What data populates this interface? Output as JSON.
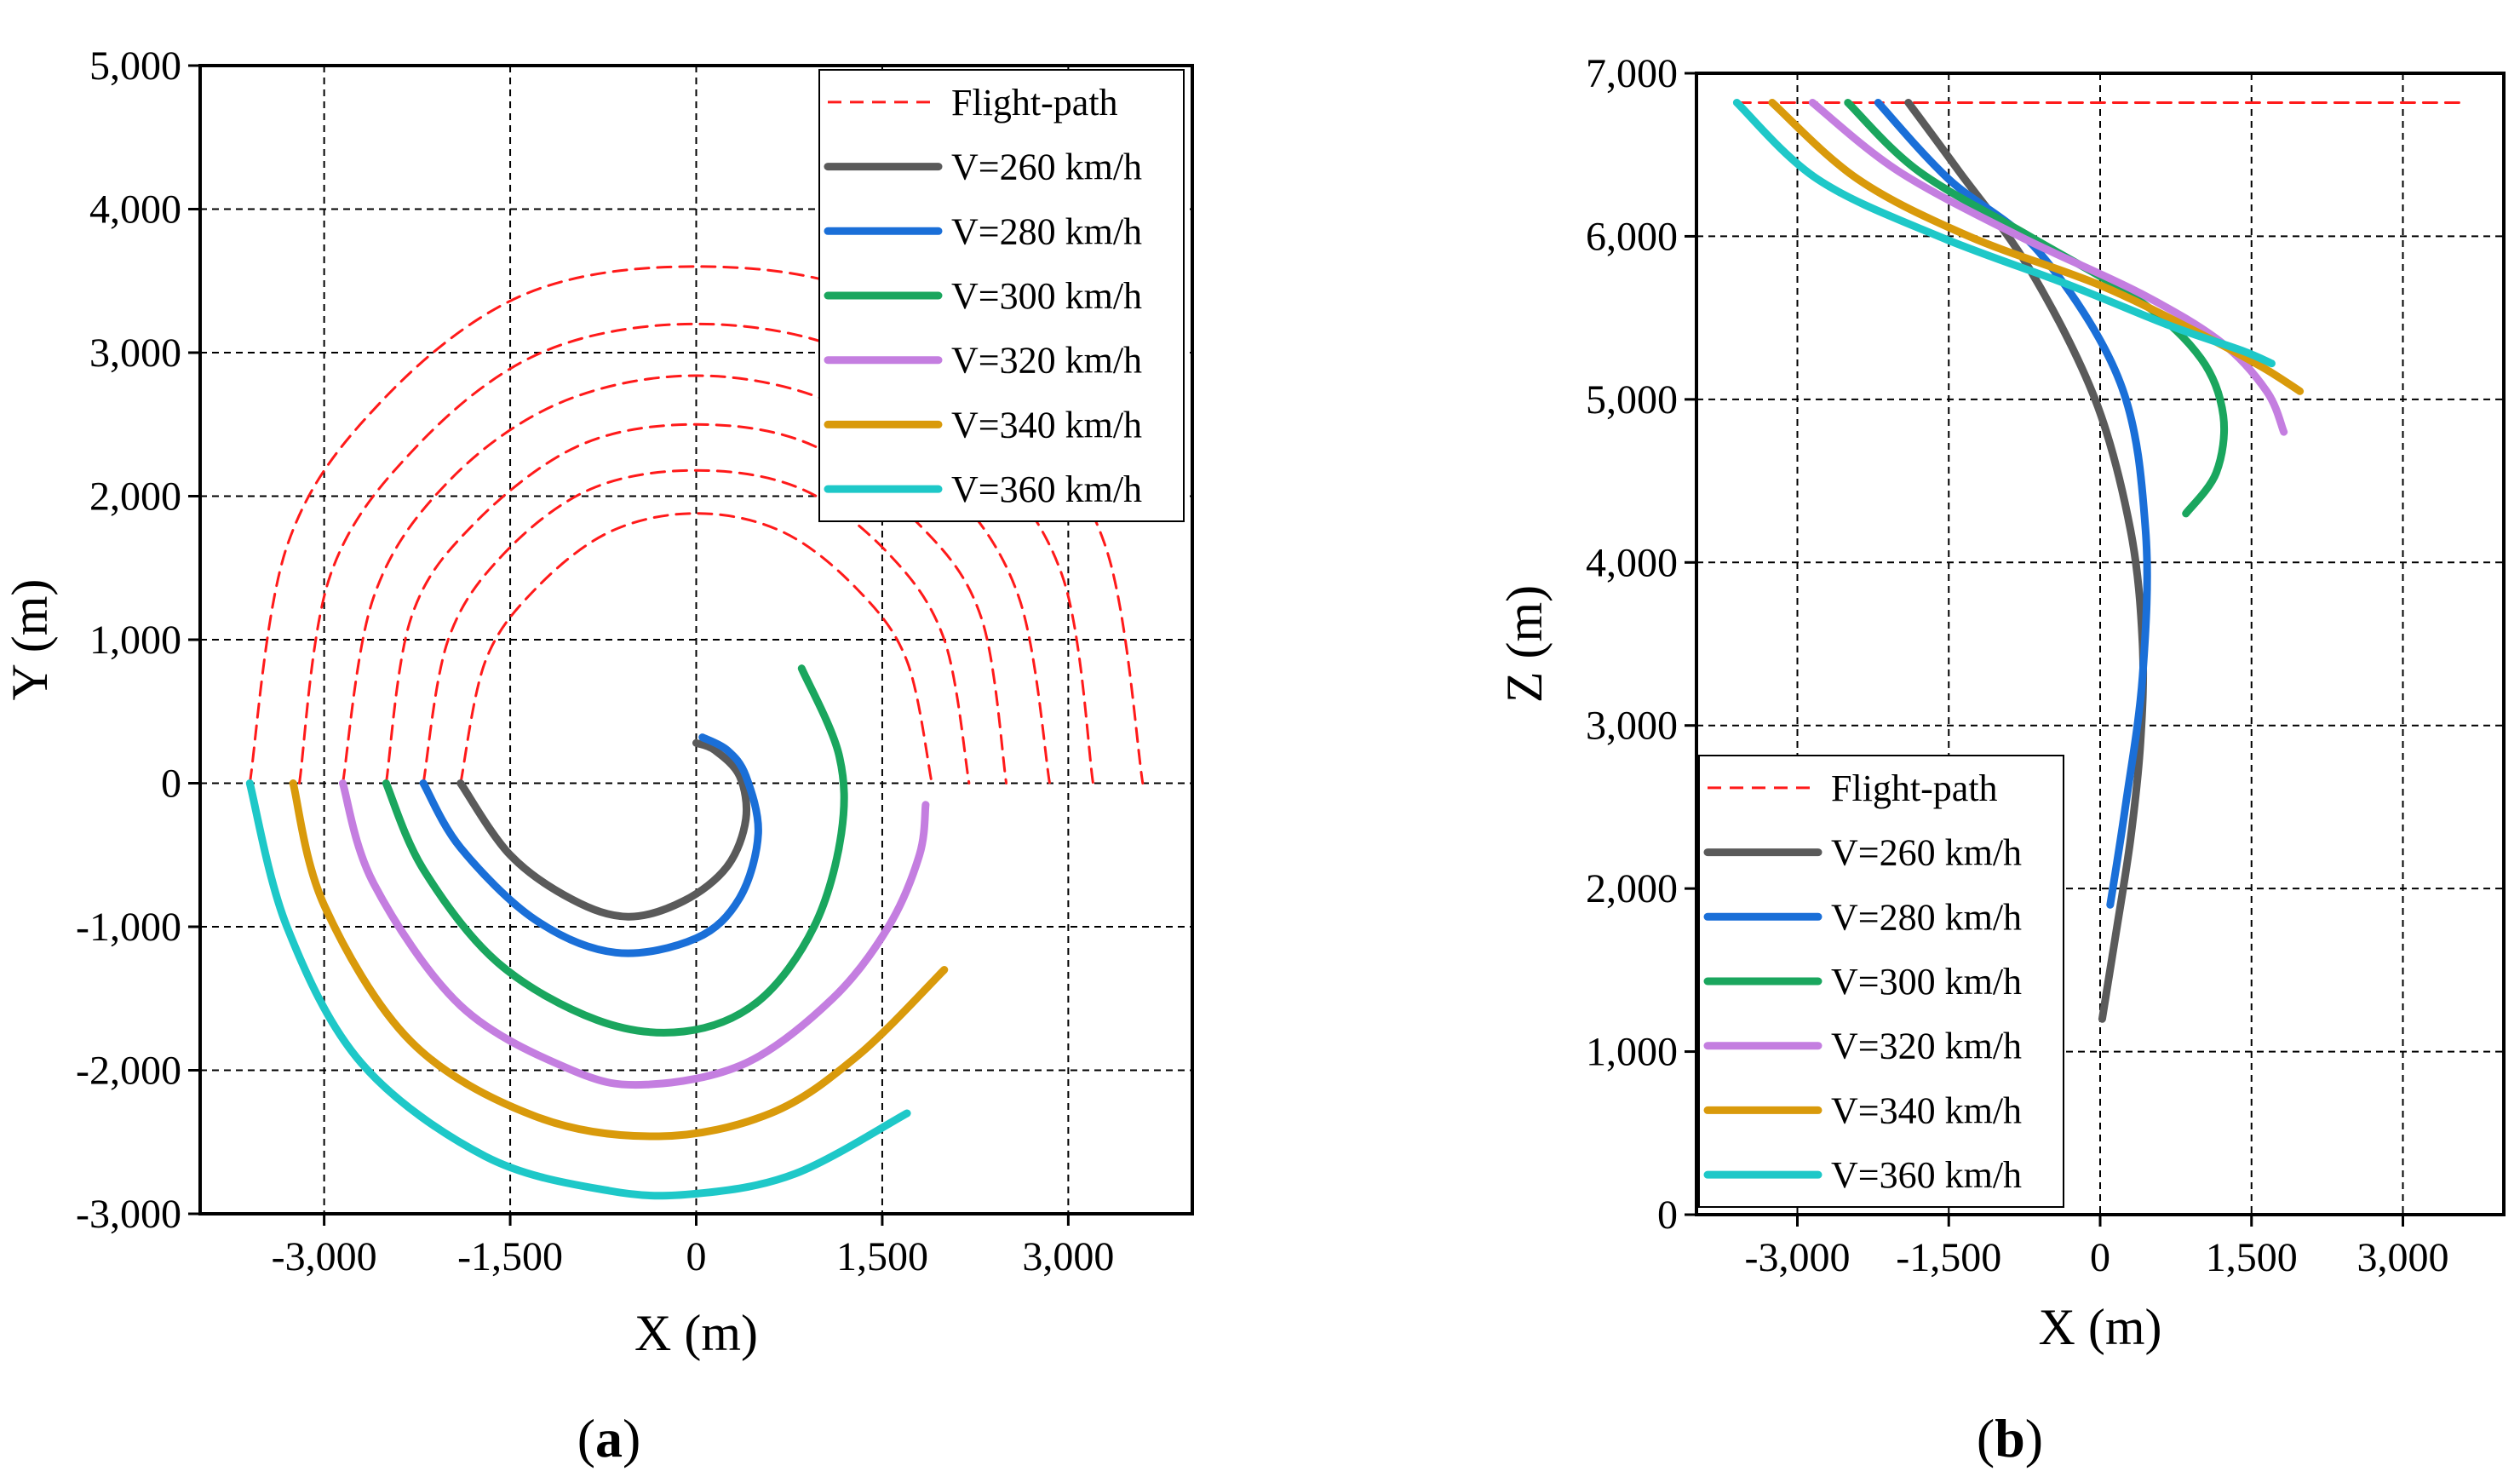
{
  "chart_data": [
    {
      "type": "line",
      "panel": "a",
      "panel_label": "a",
      "xlabel": "X (m)",
      "ylabel": "Y (m)",
      "xlim": [
        -4000,
        4000
      ],
      "ylim": [
        -3000,
        5000
      ],
      "xticks": [
        -3000,
        -1500,
        0,
        1500,
        3000
      ],
      "xtick_labels": [
        "-3,000",
        "-1,500",
        "0",
        "1,500",
        "3,000"
      ],
      "yticks": [
        -3000,
        -2000,
        -1000,
        0,
        1000,
        2000,
        3000,
        4000,
        5000
      ],
      "ytick_labels": [
        "-3,000",
        "-2,000",
        "-1,000",
        "0",
        "1,000",
        "2,000",
        "3,000",
        "4,000",
        "5,000"
      ],
      "grid": true,
      "legend_position": "top-right",
      "series": [
        {
          "name": "Flight-path",
          "color": "#ff1a1a",
          "dashed": true,
          "arcs": [
            {
              "x": [
                -1900,
                -1700,
                -1300,
                -700,
                0,
                700,
                1300,
                1700,
                1900
              ],
              "y": [
                0,
                850,
                1350,
                1750,
                1880,
                1750,
                1350,
                850,
                0
              ]
            },
            {
              "x": [
                -2200,
                -2000,
                -1550,
                -850,
                0,
                850,
                1550,
                2000,
                2200
              ],
              "y": [
                0,
                1000,
                1600,
                2050,
                2180,
                2050,
                1600,
                1000,
                0
              ]
            },
            {
              "x": [
                -2500,
                -2300,
                -1800,
                -950,
                0,
                950,
                1800,
                2300,
                2500
              ],
              "y": [
                0,
                1150,
                1800,
                2350,
                2500,
                2350,
                1800,
                1150,
                0
              ]
            },
            {
              "x": [
                -2850,
                -2600,
                -2000,
                -1100,
                0,
                1100,
                2000,
                2600,
                2850
              ],
              "y": [
                0,
                1300,
                2100,
                2650,
                2840,
                2650,
                2100,
                1300,
                0
              ]
            },
            {
              "x": [
                -3200,
                -2950,
                -2250,
                -1250,
                0,
                1250,
                2250,
                2950,
                3200
              ],
              "y": [
                0,
                1450,
                2350,
                3000,
                3200,
                3000,
                2350,
                1450,
                0
              ]
            },
            {
              "x": [
                -3600,
                -3300,
                -2550,
                -1400,
                0,
                1400,
                2550,
                3300,
                3600
              ],
              "y": [
                0,
                1650,
                2650,
                3400,
                3600,
                3400,
                2650,
                1650,
                0
              ]
            }
          ]
        },
        {
          "name": "V=260 km/h",
          "color": "#5a5a5a",
          "x": [
            -1900,
            -1500,
            -1000,
            -550,
            -100,
            250,
            400,
            350,
            150,
            0
          ],
          "y": [
            0,
            -500,
            -810,
            -930,
            -820,
            -580,
            -250,
            50,
            230,
            280
          ]
        },
        {
          "name": "V=280 km/h",
          "color": "#1a6fd8",
          "x": [
            -2200,
            -1900,
            -1300,
            -650,
            0,
            350,
            500,
            400,
            250,
            50
          ],
          "y": [
            0,
            -450,
            -950,
            -1180,
            -1080,
            -800,
            -350,
            50,
            230,
            320
          ]
        },
        {
          "name": "V=300 km/h",
          "color": "#1aa65e",
          "x": [
            -2500,
            -2200,
            -1600,
            -800,
            -100,
            500,
            950,
            1170,
            1150,
            850
          ],
          "y": [
            0,
            -600,
            -1250,
            -1650,
            -1730,
            -1520,
            -1000,
            -350,
            200,
            800
          ]
        },
        {
          "name": "V=320 km/h",
          "color": "#c47ee0",
          "x": [
            -2850,
            -2600,
            -1900,
            -1000,
            -400,
            400,
            1100,
            1550,
            1800,
            1850
          ],
          "y": [
            0,
            -700,
            -1550,
            -2000,
            -2100,
            -1950,
            -1500,
            -1000,
            -500,
            -150
          ]
        },
        {
          "name": "V=340 km/h",
          "color": "#d99a0b",
          "x": [
            -3250,
            -3000,
            -2300,
            -1300,
            -300,
            600,
            1300,
            2000
          ],
          "y": [
            0,
            -850,
            -1800,
            -2320,
            -2460,
            -2300,
            -1900,
            -1300
          ]
        },
        {
          "name": "V=360 km/h",
          "color": "#1ec8c8",
          "x": [
            -3600,
            -3300,
            -2700,
            -1700,
            -700,
            0,
            800,
            1700
          ],
          "y": [
            0,
            -1000,
            -1950,
            -2600,
            -2840,
            -2860,
            -2720,
            -2300
          ]
        }
      ]
    },
    {
      "type": "line",
      "panel": "b",
      "panel_label": "b",
      "xlabel": "X (m)",
      "ylabel": "Z (m)",
      "xlim": [
        -4000,
        4000
      ],
      "ylim": [
        0,
        7000
      ],
      "xticks": [
        -3000,
        -1500,
        0,
        1500,
        3000
      ],
      "xtick_labels": [
        "-3,000",
        "-1,500",
        "0",
        "1,500",
        "3,000"
      ],
      "yticks": [
        0,
        1000,
        2000,
        3000,
        4000,
        5000,
        6000,
        7000
      ],
      "ytick_labels": [
        "0",
        "1,000",
        "2,000",
        "3,000",
        "4,000",
        "5,000",
        "6,000",
        "7,000"
      ],
      "grid": true,
      "legend_position": "bottom-left",
      "series": [
        {
          "name": "Flight-path",
          "color": "#ff1a1a",
          "dashed": true,
          "x": [
            -3600,
            3600
          ],
          "y": [
            6820,
            6820
          ]
        },
        {
          "name": "V=260 km/h",
          "color": "#5a5a5a",
          "x": [
            -1900,
            -1400,
            -700,
            -50,
            300,
            420,
            400,
            300,
            150,
            20
          ],
          "y": [
            6820,
            6400,
            5800,
            5000,
            4200,
            3500,
            2900,
            2300,
            1700,
            1200
          ]
        },
        {
          "name": "V=280 km/h",
          "color": "#1a6fd8",
          "x": [
            -2200,
            -1500,
            -600,
            200,
            450,
            420,
            250,
            100
          ],
          "y": [
            6820,
            6350,
            5900,
            5100,
            4200,
            3300,
            2500,
            1900
          ]
        },
        {
          "name": "V=300 km/h",
          "color": "#1aa65e",
          "x": [
            -2500,
            -1800,
            -700,
            400,
            1000,
            1220,
            1150,
            850
          ],
          "y": [
            6820,
            6400,
            6000,
            5600,
            5250,
            4900,
            4550,
            4300
          ]
        },
        {
          "name": "V=320 km/h",
          "color": "#c47ee0",
          "x": [
            -2850,
            -2000,
            -800,
            400,
            1200,
            1650,
            1820
          ],
          "y": [
            6820,
            6400,
            6000,
            5650,
            5350,
            5050,
            4800
          ]
        },
        {
          "name": "V=340 km/h",
          "color": "#d99a0b",
          "x": [
            -3250,
            -2400,
            -1300,
            0,
            1000,
            1600,
            1980
          ],
          "y": [
            6820,
            6350,
            6000,
            5700,
            5400,
            5200,
            5050
          ]
        },
        {
          "name": "V=360 km/h",
          "color": "#1ec8c8",
          "x": [
            -3600,
            -2800,
            -1600,
            -300,
            700,
            1400,
            1700
          ],
          "y": [
            6820,
            6350,
            6000,
            5700,
            5450,
            5300,
            5220
          ]
        }
      ]
    }
  ]
}
